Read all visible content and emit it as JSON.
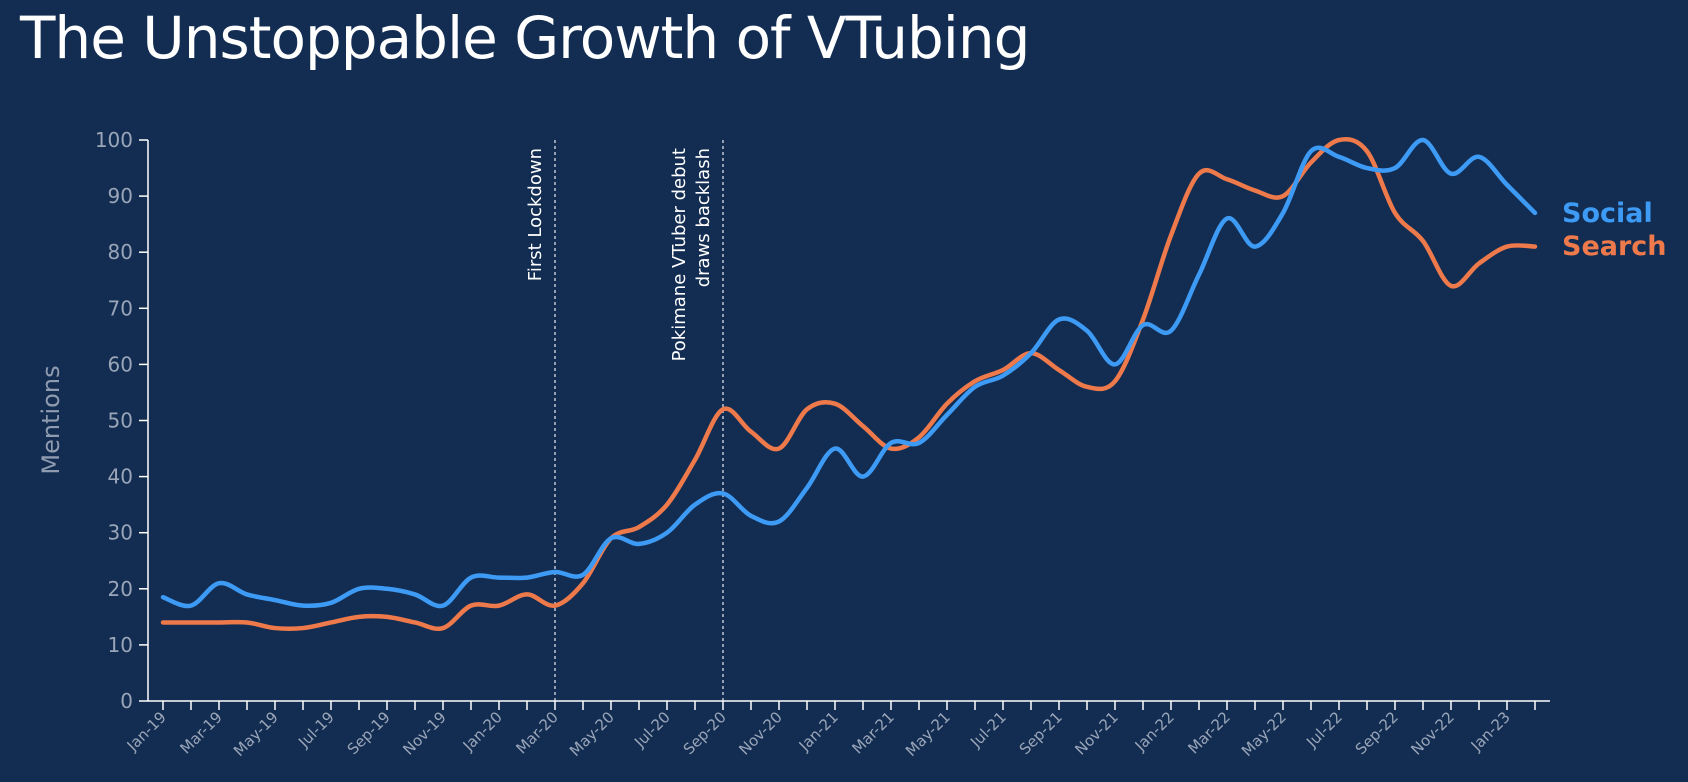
{
  "colors": {
    "background": "#132d52",
    "social": "#3d9bf5",
    "search": "#ee7a4b",
    "axis": "#ffffff",
    "tick_label": "#9aa6b8"
  },
  "chart_data": {
    "type": "line",
    "title": "The Unstoppable Growth of VTubing",
    "xlabel": "",
    "ylabel": "Mentions",
    "ylim": [
      0,
      100
    ],
    "yticks": [
      0,
      10,
      20,
      30,
      40,
      50,
      60,
      70,
      80,
      90,
      100
    ],
    "grid": false,
    "legend_position": "right, at line ends",
    "categories": [
      "Jan-19",
      "Feb-19",
      "Mar-19",
      "Apr-19",
      "May-19",
      "Jun-19",
      "Jul-19",
      "Aug-19",
      "Sep-19",
      "Oct-19",
      "Nov-19",
      "Dec-19",
      "Jan-20",
      "Feb-20",
      "Mar-20",
      "Apr-20",
      "May-20",
      "Jun-20",
      "Jul-20",
      "Aug-20",
      "Sep-20",
      "Oct-20",
      "Nov-20",
      "Dec-20",
      "Jan-21",
      "Feb-21",
      "Mar-21",
      "Apr-21",
      "May-21",
      "Jun-21",
      "Jul-21",
      "Aug-21",
      "Sep-21",
      "Oct-21",
      "Nov-21",
      "Dec-21",
      "Jan-22",
      "Feb-22",
      "Mar-22",
      "Apr-22",
      "May-22",
      "Jun-22",
      "Jul-22",
      "Aug-22",
      "Sep-22",
      "Oct-22",
      "Nov-22",
      "Dec-22",
      "Jan-23",
      "Feb-23"
    ],
    "tick_labels": [
      "Jan-19",
      "Mar-19",
      "May-19",
      "Jul-19",
      "Sep-19",
      "Nov-19",
      "Jan-20",
      "Mar-20",
      "May-20",
      "Jul-20",
      "Sep-20",
      "Nov-20",
      "Jan-21",
      "Mar-21",
      "May-21",
      "Jul-21",
      "Sep-21",
      "Nov-21",
      "Jan-22",
      "Mar-22",
      "May-22",
      "Jul-22",
      "Sep-22",
      "Nov-22",
      "Jan-23"
    ],
    "series": [
      {
        "name": "Social",
        "color": "#3d9bf5",
        "values": [
          18.5,
          17,
          21,
          19,
          18,
          17,
          17.5,
          20,
          20,
          19,
          17,
          22,
          22,
          22,
          23,
          22.5,
          29,
          28,
          30,
          35,
          37,
          33,
          32,
          38,
          45,
          40,
          46,
          46,
          51,
          56,
          58,
          62,
          68,
          66,
          60,
          67,
          66,
          76,
          86,
          81,
          87,
          98,
          97,
          95,
          95,
          100,
          94,
          97,
          92,
          87
        ]
      },
      {
        "name": "Search",
        "color": "#ee7a4b",
        "values": [
          14,
          14,
          14,
          14,
          13,
          13,
          14,
          15,
          15,
          14,
          13,
          17,
          17,
          19,
          17,
          21,
          29,
          31,
          35,
          43,
          52,
          48,
          45,
          52,
          53,
          49,
          45,
          47,
          53,
          57,
          59,
          62,
          59,
          56,
          57,
          68,
          83,
          94,
          93,
          91,
          90,
          96,
          100,
          98,
          87,
          82,
          74,
          78,
          81,
          81
        ]
      }
    ],
    "annotations": [
      {
        "x": "Mar-20",
        "lines": [
          "First Lockdown"
        ]
      },
      {
        "x": "Sep-20",
        "lines": [
          "Pokimane VTuber debut",
          "draws backlash"
        ]
      }
    ]
  }
}
